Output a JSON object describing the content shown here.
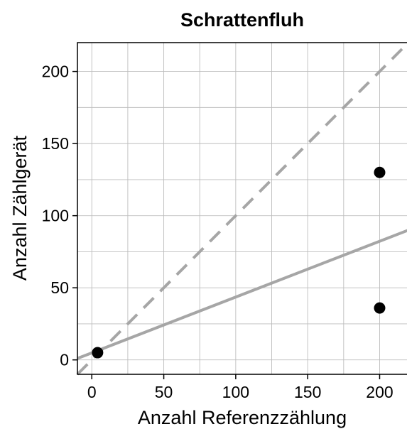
{
  "chart_data": {
    "type": "scatter",
    "title": "Schrattenfluh",
    "xlabel": "Anzahl Referenzzählung",
    "ylabel": "Anzahl Zählgerät",
    "xlim": [
      -10,
      220
    ],
    "ylim": [
      -10,
      220
    ],
    "x_ticks": [
      0,
      50,
      100,
      150,
      200
    ],
    "y_ticks": [
      0,
      50,
      100,
      150,
      200
    ],
    "x_tick_labels": [
      "0",
      "50",
      "100",
      "150",
      "200"
    ],
    "y_tick_labels": [
      "0",
      "50",
      "100",
      "150",
      "200"
    ],
    "grid": true,
    "points": [
      {
        "x": 4,
        "y": 5
      },
      {
        "x": 200,
        "y": 130
      },
      {
        "x": 200,
        "y": 36
      }
    ],
    "reference_lines": [
      {
        "kind": "identity",
        "style": "dashed",
        "color": "#a6a6a6",
        "x": [
          -10,
          220
        ],
        "y": [
          -10,
          220
        ]
      },
      {
        "kind": "regression",
        "style": "solid",
        "color": "#a6a6a6",
        "x": [
          -10,
          220
        ],
        "y": [
          1,
          90
        ]
      }
    ],
    "colors": {
      "points": "#000000",
      "grid": "#bdbdbd",
      "frame": "#000000"
    }
  }
}
